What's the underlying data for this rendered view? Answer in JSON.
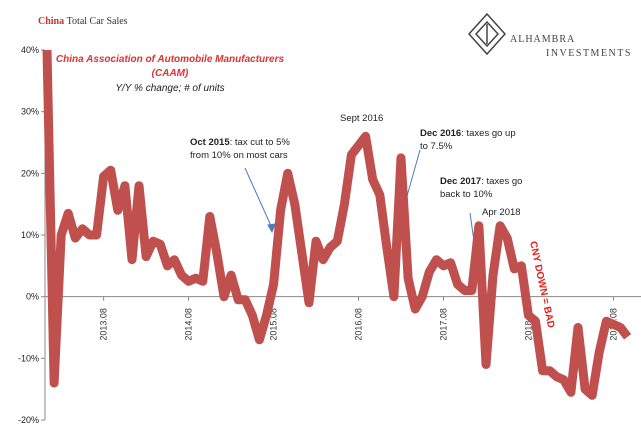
{
  "chart_data": {
    "type": "line",
    "title": {
      "highlight": "China",
      "rest": "Total Car Sales"
    },
    "subtitle": [
      "China Association of Automobile Manufacturers",
      "(CAAM)"
    ],
    "note": "Y/Y % change; # of units",
    "logo": {
      "name": "ALHAMBRA",
      "tagline": "INVESTMENTS"
    },
    "categories": [
      null,
      null,
      null,
      null,
      null,
      null,
      null,
      null,
      "2013.08",
      null,
      null,
      null,
      null,
      null,
      null,
      null,
      null,
      null,
      null,
      null,
      "2014.08",
      null,
      null,
      null,
      null,
      null,
      null,
      null,
      null,
      null,
      null,
      null,
      "2015.08",
      null,
      null,
      null,
      null,
      null,
      null,
      null,
      null,
      null,
      null,
      null,
      "2016.08",
      null,
      null,
      null,
      null,
      null,
      null,
      null,
      null,
      null,
      null,
      null,
      "2017.08",
      null,
      null,
      null,
      null,
      null,
      null,
      null,
      null,
      null,
      null,
      null,
      "2018.08",
      null,
      null,
      null,
      null,
      null,
      null,
      null,
      null,
      null,
      null,
      null,
      "2019.08",
      null,
      null
    ],
    "series": [
      {
        "name": "China Total Car Sales",
        "color": "#c0504d",
        "values": [
          40,
          -14,
          10,
          13.5,
          9.5,
          11,
          10,
          10,
          19.5,
          20.5,
          14,
          18,
          6,
          18,
          6.5,
          9,
          8.5,
          5,
          6,
          3.5,
          2.5,
          3,
          2.5,
          13,
          7,
          0,
          3.5,
          -0.5,
          -0.5,
          -3,
          -7,
          -3,
          2,
          14,
          20,
          15,
          7,
          -1,
          9,
          6,
          8,
          9,
          15,
          23,
          24.5,
          26,
          19,
          16.5,
          8,
          0,
          22.5,
          3,
          -2,
          0,
          4,
          6,
          5,
          5.5,
          2,
          1,
          1,
          11.5,
          -11,
          3.5,
          11.5,
          9.5,
          4.5,
          5,
          -3,
          -4,
          -12,
          -12,
          -13,
          -13.5,
          -15.5,
          -5,
          -15,
          -16,
          -9,
          -4,
          -4.5,
          -5,
          -6.5
        ]
      }
    ],
    "ylim": [
      -20,
      40
    ],
    "yticks": [
      {
        "value": -20,
        "label": "-20%"
      },
      {
        "value": -10,
        "label": "-10%"
      },
      {
        "value": 0,
        "label": "0%"
      },
      {
        "value": 10,
        "label": "10%"
      },
      {
        "value": 20,
        "label": "20%"
      },
      {
        "value": 30,
        "label": "30%"
      },
      {
        "value": 40,
        "label": "40%"
      }
    ],
    "annotations": [
      {
        "bold": "Oct 2015",
        "lines": [
          ": tax cut to 5%",
          "from 10% on most cars"
        ]
      },
      {
        "lines": [
          "Sept 2016"
        ]
      },
      {
        "bold": "Dec 2016",
        "lines": [
          ": taxes go up",
          "to 7.5%"
        ]
      },
      {
        "bold": "Dec 2017",
        "lines": [
          ": taxes go",
          "back to 10%"
        ]
      },
      {
        "lines": [
          "Apr 2018"
        ]
      },
      {
        "lines": [
          "CNY DOWN = BAD"
        ]
      }
    ]
  }
}
